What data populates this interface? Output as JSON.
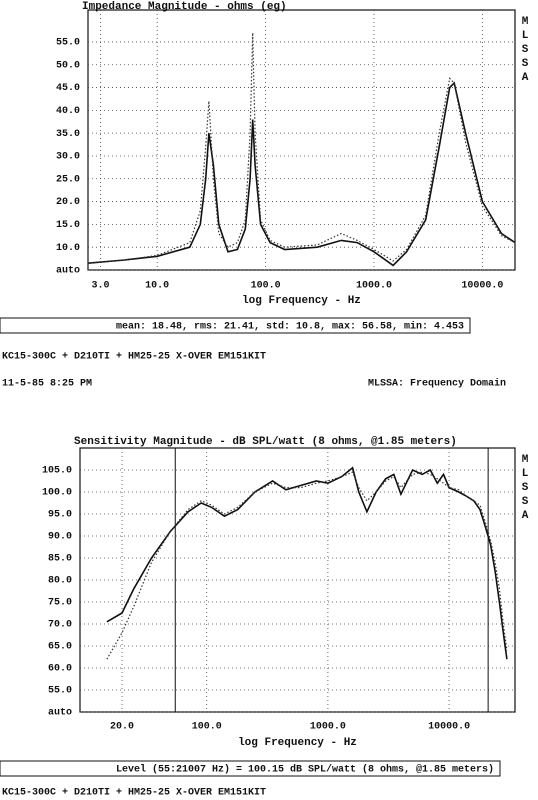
{
  "chart_data": [
    {
      "type": "line",
      "title": "Impedance Magnitude - ohms (eg)",
      "xlabel": "log Frequency - Hz",
      "side_label": "MLSSA",
      "log_x": true,
      "grid": true,
      "xlim": [
        2.3,
        20000
      ],
      "xticks": [
        {
          "value": 3,
          "label": "3.0"
        },
        {
          "value": 10,
          "label": "10.0"
        },
        {
          "value": 100,
          "label": "100.0"
        },
        {
          "value": 1000,
          "label": "1000.0"
        },
        {
          "value": 10000,
          "label": "10000.0"
        }
      ],
      "ylim": [
        5,
        62
      ],
      "yticks": [
        {
          "value": 5,
          "label": "auto"
        },
        {
          "value": 10,
          "label": "10.0"
        },
        {
          "value": 15,
          "label": "15.0"
        },
        {
          "value": 20,
          "label": "20.0"
        },
        {
          "value": 25,
          "label": "25.0"
        },
        {
          "value": 30,
          "label": "30.0"
        },
        {
          "value": 35,
          "label": "35.0"
        },
        {
          "value": 40,
          "label": "40.0"
        },
        {
          "value": 45,
          "label": "45.0"
        },
        {
          "value": 50,
          "label": "50.0"
        },
        {
          "value": 55,
          "label": "55.0"
        }
      ],
      "x": [
        2.3,
        5,
        10,
        20,
        25,
        28,
        30,
        33,
        37,
        45,
        55,
        65,
        72,
        76,
        80,
        90,
        110,
        150,
        300,
        500,
        700,
        1000,
        1500,
        2000,
        3000,
        4000,
        5000,
        5500,
        7000,
        10000,
        15000,
        20000
      ],
      "series": [
        {
          "color": "#111111",
          "style": "solid",
          "values": [
            6.5,
            7.2,
            8,
            10,
            15,
            25,
            35,
            28,
            15,
            9,
            9.5,
            14,
            25,
            38,
            28,
            15,
            11,
            9.5,
            10,
            11.5,
            11,
            9,
            6,
            9,
            16,
            32,
            45,
            46,
            35,
            20,
            13,
            11
          ]
        },
        {
          "color": "#333333",
          "style": "dotted",
          "values": [
            6.5,
            7.2,
            8.2,
            11,
            18,
            32,
            42,
            25,
            13,
            10,
            11,
            16,
            35,
            57,
            35,
            16,
            11.5,
            10,
            10.5,
            13,
            11.5,
            9.5,
            7,
            9.5,
            17,
            35,
            47,
            46,
            33,
            19,
            12.5,
            11
          ]
        }
      ],
      "footer": "mean: 18.48, rms: 21.41, std: 10.8, max: 56.58, min: 4.453"
    },
    {
      "type": "line",
      "title": "Sensitivity Magnitude - dB SPL/watt (8 ohms, @1.85 meters)",
      "xlabel": "log Frequency - Hz",
      "side_label": "MLSSA",
      "log_x": true,
      "grid": true,
      "xlim": [
        9,
        35000
      ],
      "xticks": [
        {
          "value": 20,
          "label": "20.0"
        },
        {
          "value": 100,
          "label": "100.0"
        },
        {
          "value": 1000,
          "label": "1000.0"
        },
        {
          "value": 10000,
          "label": "10000.0"
        }
      ],
      "ylim": [
        50,
        110
      ],
      "yticks": [
        {
          "value": 50,
          "label": "auto"
        },
        {
          "value": 55,
          "label": "55.0"
        },
        {
          "value": 60,
          "label": "60.0"
        },
        {
          "value": 65,
          "label": "65.0"
        },
        {
          "value": 70,
          "label": "70.0"
        },
        {
          "value": 75,
          "label": "75.0"
        },
        {
          "value": 80,
          "label": "80.0"
        },
        {
          "value": 85,
          "label": "85.0"
        },
        {
          "value": 90,
          "label": "90.0"
        },
        {
          "value": 95,
          "label": "95.0"
        },
        {
          "value": 100,
          "label": "100.0"
        },
        {
          "value": 105,
          "label": "105.0"
        }
      ],
      "cursors": [
        55,
        21007
      ],
      "x": [
        15,
        20,
        25,
        35,
        50,
        70,
        90,
        110,
        140,
        180,
        250,
        350,
        450,
        600,
        800,
        1000,
        1300,
        1600,
        1800,
        2100,
        2500,
        3000,
        3500,
        4000,
        5000,
        6000,
        7000,
        8000,
        9000,
        10000,
        12000,
        14000,
        16000,
        18000,
        20000,
        22000,
        24000,
        26000,
        28000,
        30000
      ],
      "series": [
        {
          "color": "#111111",
          "style": "solid",
          "values": [
            70.5,
            72.5,
            78,
            85,
            91,
            95.5,
            97.5,
            96.5,
            94.5,
            96,
            100,
            102.5,
            100.5,
            101.5,
            102.5,
            102,
            103.5,
            105.5,
            100,
            95.5,
            100,
            103,
            104,
            99.5,
            105,
            104,
            105,
            102,
            104,
            101,
            100,
            99,
            98,
            96,
            92,
            88,
            82,
            75,
            68,
            62
          ]
        },
        {
          "color": "#333333",
          "style": "dotted",
          "values": [
            62,
            68,
            74,
            84,
            91,
            96,
            98,
            97,
            95,
            96.5,
            100,
            102,
            101,
            101,
            102,
            102.5,
            103.5,
            104.5,
            101,
            98,
            100,
            102.5,
            103.5,
            101,
            104,
            104.5,
            104,
            103,
            102,
            101,
            100.5,
            99,
            98,
            97,
            93,
            89,
            84,
            78,
            70,
            64
          ]
        }
      ],
      "footer": "Level (55:21007 Hz) = 100.15 dB SPL/watt (8 ohms, @1.85 meters)"
    }
  ],
  "notes": {
    "model": "KC15-300C + D210TI + HM25-25 X-OVER EM151KIT",
    "datetime": "11-5-85 8:25 PM",
    "mode": "MLSSA: Frequency Domain",
    "model_bottom": "KC15-300C + D210TI + HM25-25 X-OVER EM151KIT"
  }
}
